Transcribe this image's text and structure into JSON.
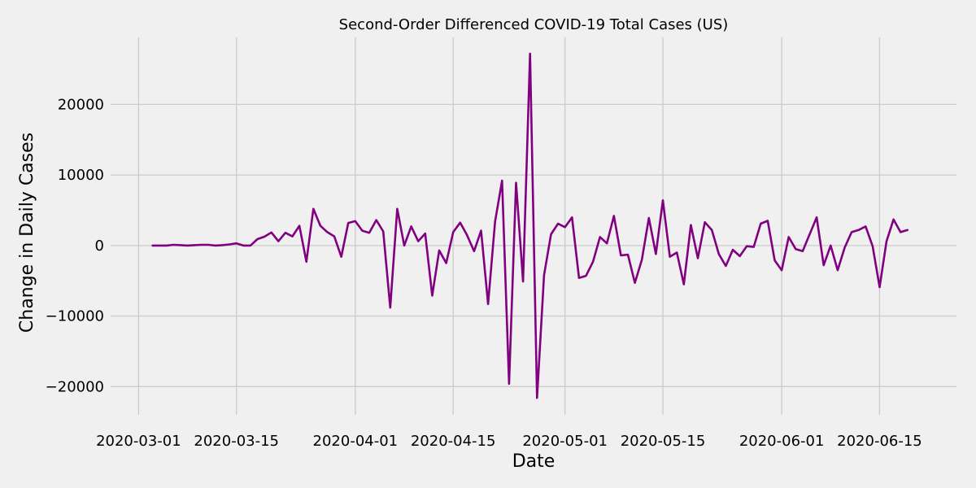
{
  "colors": {
    "background": "#f0f0f0",
    "grid": "#cbcbcb",
    "line": "#800080"
  },
  "chart_data": {
    "type": "line",
    "title": "Second-Order Differenced COVID-19 Total Cases (US)",
    "xlabel": "Date",
    "ylabel": "Change in Daily Cases",
    "grid": true,
    "xlim": [
      "2020-02-26",
      "2020-06-26"
    ],
    "ylim": [
      -24000,
      29500
    ],
    "x_ticks": [
      "2020-03-01",
      "2020-03-15",
      "2020-04-01",
      "2020-04-15",
      "2020-05-01",
      "2020-05-15",
      "2020-06-01",
      "2020-06-15"
    ],
    "y_ticks": [
      -20000,
      -10000,
      0,
      10000,
      20000
    ],
    "y_tick_labels": [
      "−20000",
      "−10000",
      "0",
      "10000",
      "20000"
    ],
    "series": [
      {
        "x": [
          "2020-03-03",
          "2020-03-04",
          "2020-03-05",
          "2020-03-06",
          "2020-03-07",
          "2020-03-08",
          "2020-03-09",
          "2020-03-10",
          "2020-03-11",
          "2020-03-12",
          "2020-03-13",
          "2020-03-14",
          "2020-03-15",
          "2020-03-16",
          "2020-03-17",
          "2020-03-18",
          "2020-03-19",
          "2020-03-20",
          "2020-03-21",
          "2020-03-22",
          "2020-03-23",
          "2020-03-24",
          "2020-03-25",
          "2020-03-26",
          "2020-03-27",
          "2020-03-28",
          "2020-03-29",
          "2020-03-30",
          "2020-03-31",
          "2020-04-01",
          "2020-04-02",
          "2020-04-03",
          "2020-04-04",
          "2020-04-05",
          "2020-04-06",
          "2020-04-07",
          "2020-04-08",
          "2020-04-09",
          "2020-04-10",
          "2020-04-11",
          "2020-04-12",
          "2020-04-13",
          "2020-04-14",
          "2020-04-15",
          "2020-04-16",
          "2020-04-17",
          "2020-04-18",
          "2020-04-19",
          "2020-04-20",
          "2020-04-21",
          "2020-04-22",
          "2020-04-23",
          "2020-04-24",
          "2020-04-25",
          "2020-04-26",
          "2020-04-27",
          "2020-04-28",
          "2020-04-29",
          "2020-04-30",
          "2020-05-01",
          "2020-05-02",
          "2020-05-03",
          "2020-05-04",
          "2020-05-05",
          "2020-05-06",
          "2020-05-07",
          "2020-05-08",
          "2020-05-09",
          "2020-05-10",
          "2020-05-11",
          "2020-05-12",
          "2020-05-13",
          "2020-05-14",
          "2020-05-15",
          "2020-05-16",
          "2020-05-17",
          "2020-05-18",
          "2020-05-19",
          "2020-05-20",
          "2020-05-21",
          "2020-05-22",
          "2020-05-23",
          "2020-05-24",
          "2020-05-25",
          "2020-05-26",
          "2020-05-27",
          "2020-05-28",
          "2020-05-29",
          "2020-05-30",
          "2020-05-31",
          "2020-06-01",
          "2020-06-02",
          "2020-06-03",
          "2020-06-04",
          "2020-06-05",
          "2020-06-06",
          "2020-06-07",
          "2020-06-08",
          "2020-06-09",
          "2020-06-10",
          "2020-06-11",
          "2020-06-12",
          "2020-06-13",
          "2020-06-14",
          "2020-06-15",
          "2020-06-16",
          "2020-06-17",
          "2020-06-18",
          "2020-06-19"
        ],
        "values": [
          0,
          0,
          0,
          100,
          50,
          0,
          50,
          100,
          100,
          0,
          50,
          150,
          300,
          0,
          0,
          900,
          1250,
          1850,
          600,
          1800,
          1300,
          2800,
          -2300,
          5200,
          2800,
          1900,
          1300,
          -1600,
          3200,
          3450,
          2100,
          1800,
          3600,
          2000,
          -8800,
          5200,
          0,
          2700,
          600,
          1700,
          -7100,
          -700,
          -2500,
          1900,
          3250,
          1450,
          -800,
          2100,
          -8300,
          3400,
          9200,
          -19600,
          8900,
          -5100,
          27200,
          -21600,
          -4200,
          1600,
          3100,
          2600,
          4000,
          -4600,
          -4300,
          -2300,
          1200,
          300,
          4200,
          -1400,
          -1300,
          -5300,
          -2000,
          3900,
          -1200,
          6400,
          -1600,
          -1000,
          -5500,
          2900,
          -1800,
          3300,
          2200,
          -1200,
          -2900,
          -600,
          -1500,
          -100,
          -200,
          3100,
          3500,
          -2100,
          -3500,
          1200,
          -500,
          -800,
          1600,
          4000,
          -2800,
          0,
          -3500,
          -300,
          1900,
          2200,
          2700,
          -100,
          -5900,
          600,
          3700,
          1900,
          2200
        ]
      }
    ]
  }
}
